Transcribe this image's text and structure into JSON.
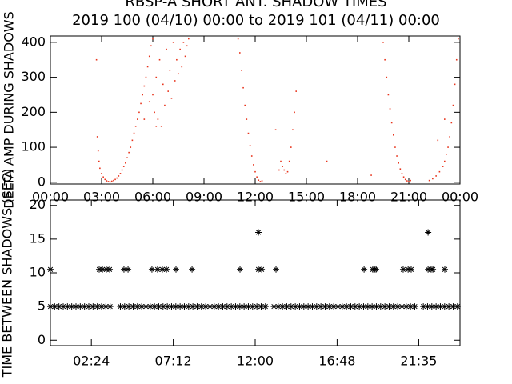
{
  "chart_data": [
    {
      "type": "scatter",
      "title": "RBSP-A SHORT ANT. SHADOW TIMES",
      "subtitle": "2019 100 (04/10) 00:00 to 2019 101 (04/11) 00:00",
      "y_label": "DELTA AMP DURING SHADOWS",
      "marker": "dot",
      "color": "#e8341c",
      "xlim": [
        0,
        24
      ],
      "ylim": [
        -5,
        418
      ],
      "xticks": [
        {
          "value": 0,
          "label": "00:00"
        },
        {
          "value": 3,
          "label": "03:00"
        },
        {
          "value": 6,
          "label": "06:00"
        },
        {
          "value": 9,
          "label": "09:00"
        },
        {
          "value": 12,
          "label": "12:00"
        },
        {
          "value": 15,
          "label": "15:00"
        },
        {
          "value": 18,
          "label": "18:00"
        },
        {
          "value": 21,
          "label": "21:00"
        },
        {
          "value": 24,
          "label": "00:00"
        }
      ],
      "yticks": [
        0,
        100,
        200,
        300,
        400
      ],
      "x": [
        2.75,
        2.8,
        2.85,
        2.9,
        3.0,
        3.1,
        3.2,
        3.3,
        3.4,
        3.5,
        3.6,
        3.7,
        3.8,
        3.9,
        4.0,
        4.1,
        4.2,
        4.3,
        4.4,
        4.5,
        4.6,
        4.7,
        4.8,
        4.9,
        5.0,
        5.1,
        5.2,
        5.3,
        5.4,
        5.5,
        5.6,
        5.7,
        5.8,
        5.9,
        6.0,
        6.0,
        6.1,
        6.2,
        6.3,
        6.4,
        6.5,
        6.6,
        6.7,
        6.8,
        6.9,
        7.0,
        7.1,
        7.2,
        7.3,
        7.4,
        7.5,
        7.6,
        7.7,
        7.8,
        7.9,
        8.0,
        8.1,
        5.5,
        5.8,
        6.2,
        11.0,
        11.1,
        11.2,
        11.3,
        11.4,
        11.5,
        11.6,
        11.7,
        11.8,
        11.9,
        12.0,
        12.1,
        12.2,
        12.3,
        12.4,
        13.4,
        13.5,
        13.6,
        13.7,
        13.8,
        13.9,
        14.0,
        14.1,
        14.2,
        14.3,
        14.4,
        13.2,
        19.5,
        19.6,
        19.7,
        19.8,
        19.9,
        20.0,
        20.1,
        20.2,
        20.3,
        20.4,
        20.5,
        20.6,
        20.7,
        20.8,
        20.9,
        21.0,
        21.1,
        18.8,
        22.2,
        22.4,
        22.6,
        22.8,
        23.0,
        23.1,
        23.2,
        23.3,
        23.4,
        23.5,
        23.6,
        23.7,
        23.8,
        23.9,
        22.7,
        23.1,
        2.7,
        16.2
      ],
      "values": [
        130,
        90,
        60,
        40,
        25,
        15,
        8,
        4,
        2,
        1,
        3,
        5,
        8,
        12,
        18,
        25,
        35,
        45,
        55,
        70,
        85,
        100,
        120,
        140,
        160,
        180,
        200,
        225,
        250,
        275,
        300,
        330,
        360,
        390,
        410,
        250,
        200,
        300,
        180,
        350,
        160,
        280,
        220,
        380,
        260,
        320,
        240,
        400,
        290,
        350,
        310,
        380,
        330,
        400,
        360,
        390,
        410,
        180,
        230,
        160,
        410,
        370,
        320,
        270,
        220,
        180,
        140,
        105,
        75,
        50,
        30,
        15,
        6,
        2,
        4,
        35,
        60,
        45,
        35,
        25,
        30,
        60,
        100,
        150,
        200,
        260,
        150,
        400,
        350,
        300,
        250,
        210,
        170,
        135,
        100,
        75,
        55,
        38,
        25,
        15,
        8,
        4,
        2,
        5,
        20,
        5,
        10,
        18,
        30,
        45,
        60,
        80,
        100,
        130,
        170,
        220,
        280,
        350,
        410,
        120,
        180,
        350,
        60
      ]
    },
    {
      "type": "scatter",
      "y_label": "TIME BETWEEN SHADOWS (SEC)",
      "marker": "asterisk",
      "color": "#000000",
      "xlim": [
        0,
        24
      ],
      "ylim": [
        -0.8,
        20.8
      ],
      "xticks": [
        {
          "value": 2.4,
          "label": "02:24"
        },
        {
          "value": 7.2,
          "label": "07:12"
        },
        {
          "value": 12,
          "label": "12:00"
        },
        {
          "value": 16.8,
          "label": "16:48"
        },
        {
          "value": 21.583,
          "label": "21:35"
        }
      ],
      "yticks": [
        0,
        5,
        10,
        15,
        20
      ],
      "x": [
        0,
        0.25,
        0.5,
        0.75,
        1,
        1.25,
        1.5,
        1.75,
        2,
        2.25,
        2.5,
        2.75,
        3,
        3.25,
        3.5,
        4.1,
        4.35,
        4.6,
        4.85,
        5.1,
        5.35,
        5.6,
        5.85,
        6.1,
        6.35,
        6.6,
        6.85,
        7.1,
        7.35,
        7.6,
        7.85,
        8.1,
        8.35,
        8.6,
        8.85,
        9.1,
        9.35,
        9.6,
        9.85,
        10.1,
        10.35,
        10.6,
        10.85,
        11.1,
        11.35,
        11.6,
        11.85,
        12.1,
        12.35,
        12.6,
        13.1,
        13.35,
        13.6,
        13.85,
        14.1,
        14.35,
        14.6,
        14.85,
        15.1,
        15.35,
        15.6,
        15.85,
        16.1,
        16.35,
        16.6,
        16.85,
        17.1,
        17.35,
        17.6,
        17.85,
        18.1,
        18.35,
        18.6,
        18.85,
        19.1,
        19.35,
        19.6,
        19.85,
        20.1,
        20.35,
        20.6,
        20.85,
        21.1,
        21.35,
        21.85,
        22.1,
        22.35,
        22.6,
        22.85,
        23.1,
        23.35,
        23.6,
        23.85,
        0,
        2.86,
        3.05,
        3.28,
        3.47,
        4.31,
        4.55,
        5.95,
        6.28,
        6.56,
        6.8,
        7.36,
        8.3,
        11.11,
        12.19,
        12.38,
        13.22,
        18.38,
        18.89,
        18.99,
        19.08,
        20.67,
        20.96,
        21.14,
        22.13,
        22.31,
        22.41,
        23.11,
        12.19,
        22.13
      ],
      "values": [
        5,
        5,
        5,
        5,
        5,
        5,
        5,
        5,
        5,
        5,
        5,
        5,
        5,
        5,
        5,
        5,
        5,
        5,
        5,
        5,
        5,
        5,
        5,
        5,
        5,
        5,
        5,
        5,
        5,
        5,
        5,
        5,
        5,
        5,
        5,
        5,
        5,
        5,
        5,
        5,
        5,
        5,
        5,
        5,
        5,
        5,
        5,
        5,
        5,
        5,
        5,
        5,
        5,
        5,
        5,
        5,
        5,
        5,
        5,
        5,
        5,
        5,
        5,
        5,
        5,
        5,
        5,
        5,
        5,
        5,
        5,
        5,
        5,
        5,
        5,
        5,
        5,
        5,
        5,
        5,
        5,
        5,
        5,
        5,
        5,
        5,
        5,
        5,
        5,
        5,
        5,
        5,
        5,
        10.5,
        10.5,
        10.5,
        10.5,
        10.5,
        10.5,
        10.5,
        10.5,
        10.5,
        10.5,
        10.5,
        10.5,
        10.5,
        10.5,
        10.5,
        10.5,
        10.5,
        10.5,
        10.5,
        10.5,
        10.5,
        10.5,
        10.5,
        10.5,
        10.5,
        10.5,
        10.5,
        10.5,
        16,
        16
      ]
    }
  ]
}
